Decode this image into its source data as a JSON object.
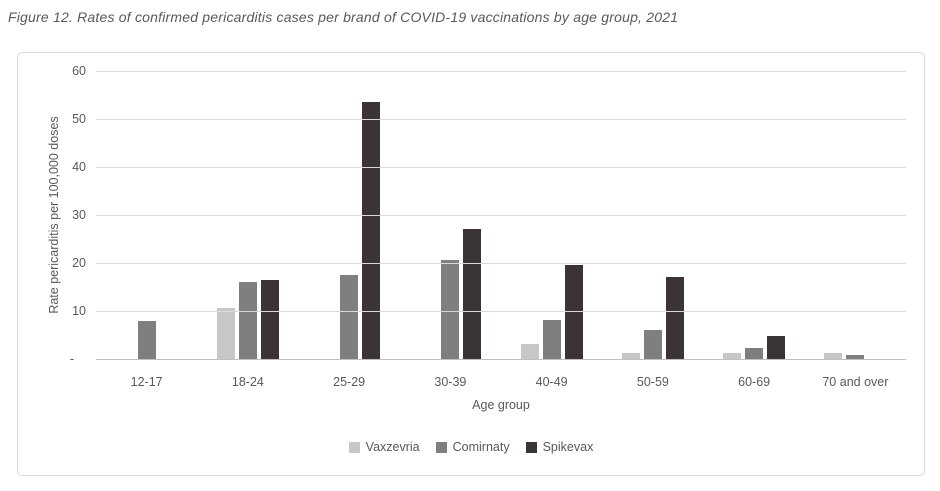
{
  "chart_data": {
    "type": "bar",
    "title": "Figure 12. Rates of confirmed pericarditis cases per brand of COVID-19 vaccinations by age group, 2021",
    "xlabel": "Age group",
    "ylabel": "Rate pericarditis per 100,000 doses",
    "ylim": [
      0,
      60
    ],
    "grid": true,
    "legend_position": "bottom",
    "categories": [
      "12-17",
      "18-24",
      "25-29",
      "30-39",
      "40-49",
      "50-59",
      "60-69",
      "70 and over"
    ],
    "series": [
      {
        "name": "Vaxzevria",
        "color": "#c7c7c7",
        "values": [
          0,
          10.7,
          0,
          0,
          3.1,
          1.3,
          1.2,
          1.3
        ]
      },
      {
        "name": "Comirnaty",
        "color": "#7f7f7f",
        "values": [
          8,
          16,
          17.6,
          20.6,
          8.1,
          6,
          2.3,
          0.8
        ]
      },
      {
        "name": "Spikevax",
        "color": "#3a3434",
        "values": [
          0,
          16.5,
          53.5,
          27,
          19.6,
          17.1,
          4.8,
          0
        ]
      }
    ],
    "yticks": [
      {
        "value": 60,
        "label": "60"
      },
      {
        "value": 50,
        "label": "50"
      },
      {
        "value": 40,
        "label": "40"
      },
      {
        "value": 30,
        "label": "30"
      },
      {
        "value": 20,
        "label": "20"
      },
      {
        "value": 10,
        "label": "10"
      },
      {
        "value": 0,
        "label": "-"
      }
    ]
  }
}
